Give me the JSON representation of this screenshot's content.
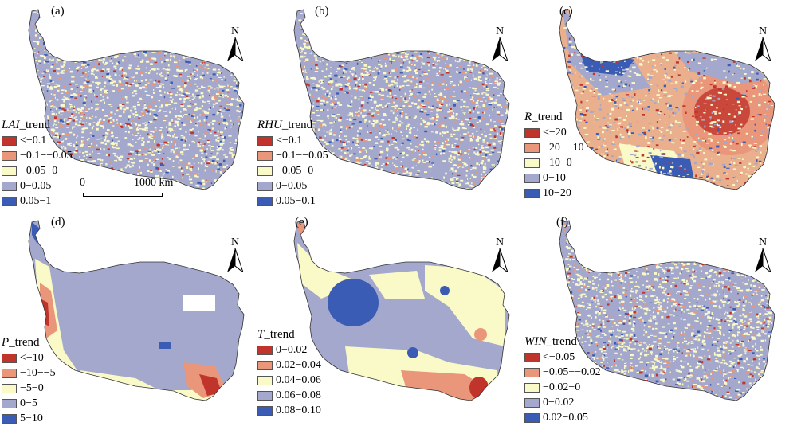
{
  "panels": [
    {
      "id": "a",
      "label": "(a)",
      "var": "LAI",
      "suffix": "_trend",
      "base": "#a3a8cc",
      "classes": [
        {
          "label": "<−0.1",
          "color": "#c0342c"
        },
        {
          "label": "−0.1−−0.05",
          "color": "#e9967a"
        },
        {
          "label": "−0.05−0",
          "color": "#fafac8"
        },
        {
          "label": "0−0.05",
          "color": "#a3a8cc"
        },
        {
          "label": "0.05−1",
          "color": "#3b5cb5"
        }
      ]
    },
    {
      "id": "b",
      "label": "(b)",
      "var": "RHU",
      "suffix": "_trend",
      "base": "#a3a8cc",
      "classes": [
        {
          "label": "<−0.1",
          "color": "#c0342c"
        },
        {
          "label": "−0.1−−0.05",
          "color": "#e9967a"
        },
        {
          "label": "−0.05−0",
          "color": "#fafac8"
        },
        {
          "label": "0−0.05",
          "color": "#a3a8cc"
        },
        {
          "label": "0.05−0.1",
          "color": "#3b5cb5"
        }
      ]
    },
    {
      "id": "c",
      "label": "(c)",
      "var": "R",
      "suffix": "_trend",
      "base": "#eab08e",
      "classes": [
        {
          "label": "<−20",
          "color": "#c0342c"
        },
        {
          "label": "−20−−10",
          "color": "#e9967a"
        },
        {
          "label": "−10−0",
          "color": "#fafac8"
        },
        {
          "label": "0−10",
          "color": "#a3a8cc"
        },
        {
          "label": "10−20",
          "color": "#3b5cb5"
        }
      ]
    },
    {
      "id": "d",
      "label": "(d)",
      "var": "P",
      "suffix": "_trend",
      "base": "#a3a8cc",
      "classes": [
        {
          "label": "<−10",
          "color": "#c0342c"
        },
        {
          "label": "−10−−5",
          "color": "#e9967a"
        },
        {
          "label": "−5−0",
          "color": "#fafac8"
        },
        {
          "label": "0−5",
          "color": "#a3a8cc"
        },
        {
          "label": "5−10",
          "color": "#3b5cb5"
        }
      ]
    },
    {
      "id": "e",
      "label": "(e)",
      "var": "T",
      "suffix": "_trend",
      "base": "#a3a8cc",
      "classes": [
        {
          "label": "0−0.02",
          "color": "#c0342c"
        },
        {
          "label": "0.02−0.04",
          "color": "#e9967a"
        },
        {
          "label": "0.04−0.06",
          "color": "#fafac8"
        },
        {
          "label": "0.06−0.08",
          "color": "#a3a8cc"
        },
        {
          "label": "0.08−0.10",
          "color": "#3b5cb5"
        }
      ]
    },
    {
      "id": "f",
      "label": "(f)",
      "var": "WIN",
      "suffix": "_trend",
      "base": "#a3a8cc",
      "classes": [
        {
          "label": "<−0.05",
          "color": "#c0342c"
        },
        {
          "label": "−0.05−−0.02",
          "color": "#e9967a"
        },
        {
          "label": "−0.02−0",
          "color": "#fafac8"
        },
        {
          "label": "0−0.02",
          "color": "#a3a8cc"
        },
        {
          "label": "0.02−0.05",
          "color": "#3b5cb5"
        }
      ]
    }
  ],
  "north_label": "N",
  "scalebar": {
    "left": "0",
    "right": "1000 km"
  }
}
